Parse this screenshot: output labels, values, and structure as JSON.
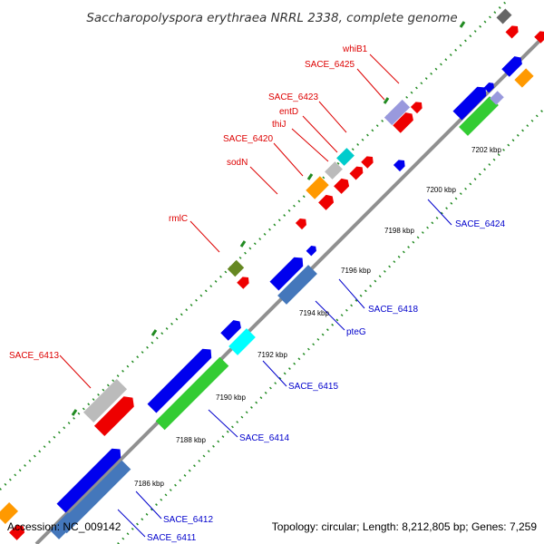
{
  "title": "Saccharopolyspora erythraea NRRL 2338, complete genome",
  "footer": {
    "accession": "Accession: NC_009142",
    "topology": "Topology: circular; Length: 8,212,805 bp; Genes: 7,259"
  },
  "colors": {
    "forward_label": "#dd0000",
    "reverse_label": "#0000cc",
    "backbone": "#888888",
    "tick": "#228B22"
  },
  "scale_ticks": [
    "7186 kbp",
    "7188 kbp",
    "7190 kbp",
    "7192 kbp",
    "7194 kbp",
    "7196 kbp",
    "7198 kbp",
    "7200 kbp",
    "7202 kbp"
  ],
  "forward_labels": [
    "whiB1",
    "SACE_6425",
    "SACE_6423",
    "entD",
    "thiJ",
    "SACE_6420",
    "sodN",
    "rmlC",
    "SACE_6413"
  ],
  "reverse_labels": [
    "SACE_6424",
    "SACE_6418",
    "pteG",
    "SACE_6415",
    "SACE_6414",
    "SACE_6412",
    "SACE_6411"
  ]
}
